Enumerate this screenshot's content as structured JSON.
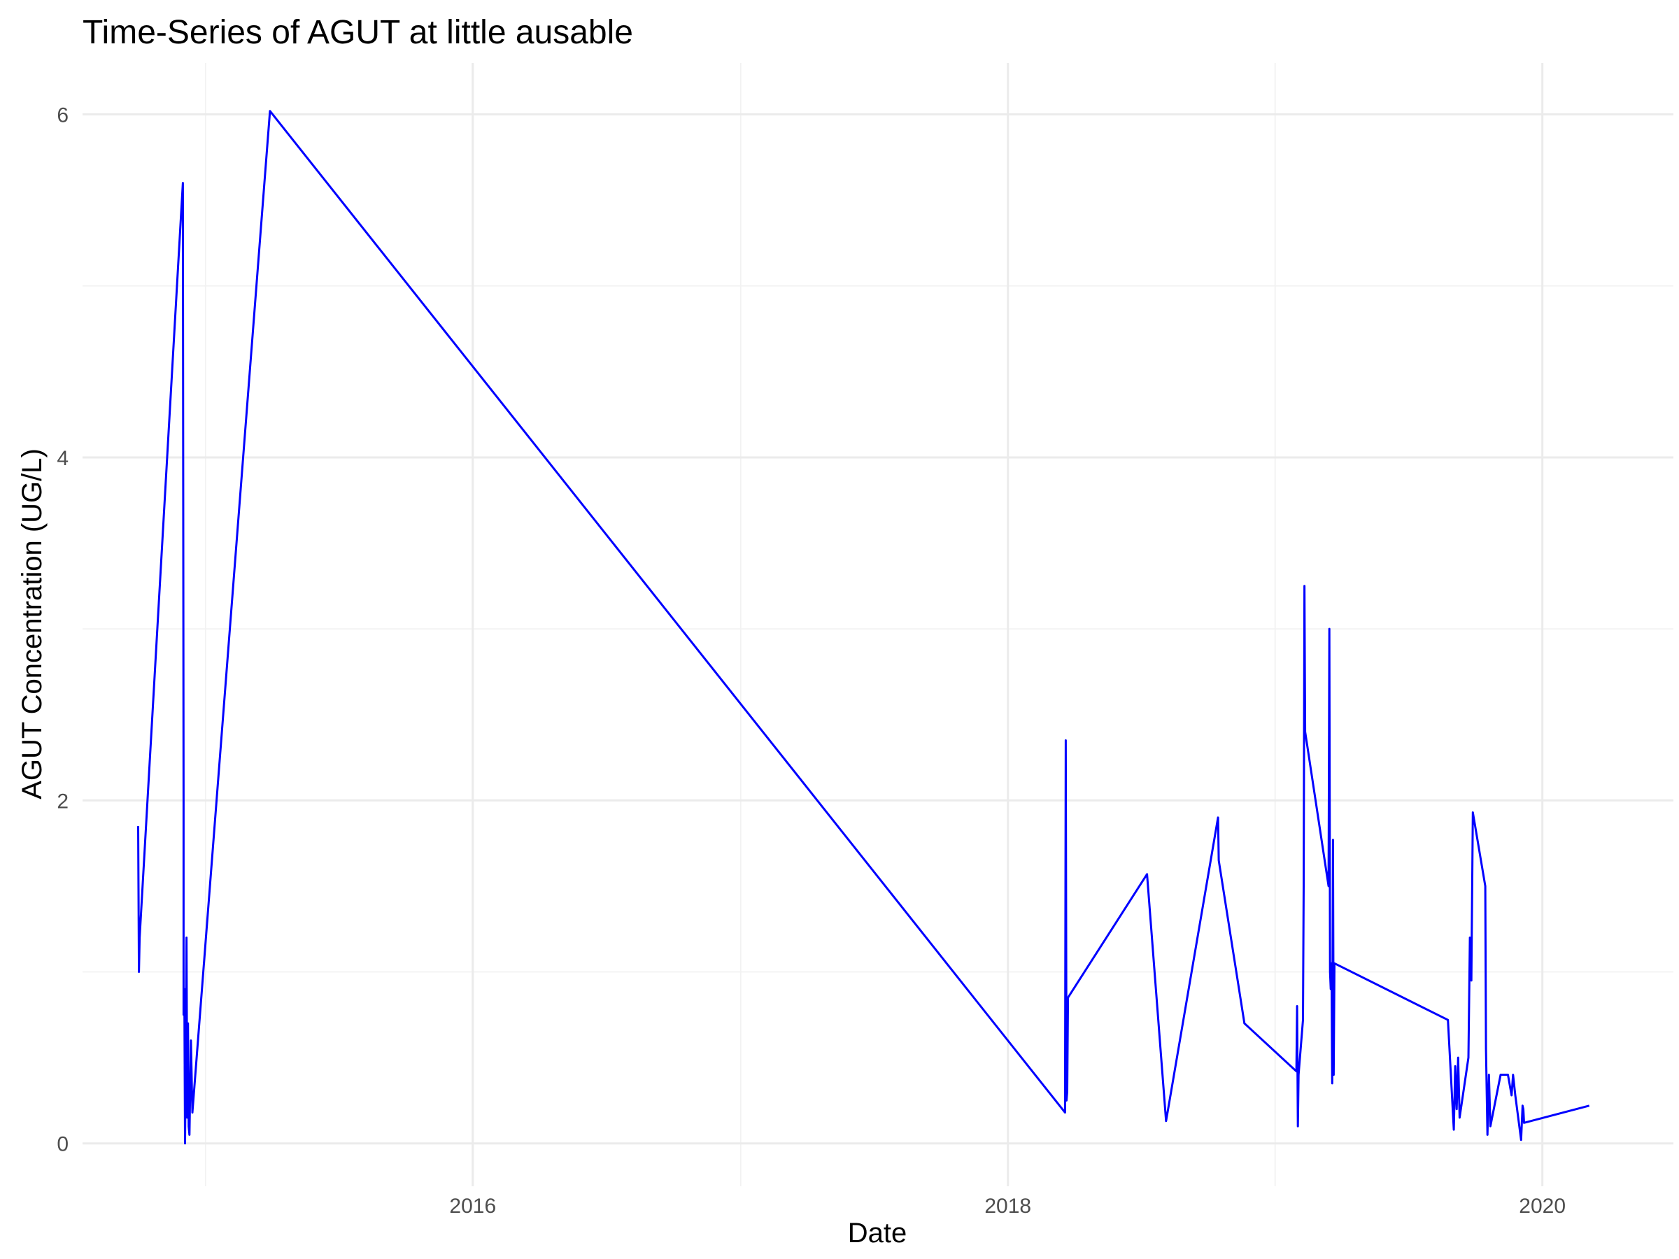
{
  "chart_data": {
    "type": "line",
    "title": "Time-Series of AGUT at little ausable",
    "xlabel": "Date",
    "ylabel": "AGUT Concentration (UG/L)",
    "x_tick_labels": [
      "2016",
      "2018",
      "2020"
    ],
    "y_tick_labels": [
      "0",
      "2",
      "4",
      "6"
    ],
    "ylim": [
      -0.25,
      6.3
    ],
    "xlim": [
      "2014-07-17",
      "2020-06-28"
    ],
    "grid": true,
    "legend": "none",
    "line_color": "#0000ff",
    "series": [
      {
        "x": [
          "2014-10-01",
          "2014-10-02",
          "2014-10-03",
          "2014-12-01",
          "2014-12-02",
          "2014-12-02",
          "2014-12-03",
          "2014-12-04",
          "2014-12-05",
          "2014-12-06",
          "2014-12-07",
          "2014-12-08",
          "2014-12-09",
          "2014-12-10",
          "2014-12-11",
          "2014-12-12",
          "2014-12-14",
          "2015-03-30",
          "2018-03-20",
          "2018-03-21",
          "2018-03-22",
          "2018-03-23",
          "2018-03-24",
          "2018-07-10",
          "2018-08-05",
          "2018-10-15",
          "2018-10-16",
          "2018-11-20",
          "2019-01-30",
          "2019-01-31",
          "2019-02-01",
          "2019-02-02",
          "2019-02-08",
          "2019-02-09",
          "2019-02-10",
          "2019-02-11",
          "2019-03-15",
          "2019-03-16",
          "2019-03-17",
          "2019-03-18",
          "2019-03-19",
          "2019-03-20",
          "2019-03-21",
          "2019-03-22",
          "2019-03-23",
          "2019-08-25",
          "2019-09-02",
          "2019-09-04",
          "2019-09-06",
          "2019-09-08",
          "2019-09-10",
          "2019-09-22",
          "2019-09-24",
          "2019-09-26",
          "2019-09-28",
          "2019-10-15",
          "2019-10-16",
          "2019-10-18",
          "2019-10-20",
          "2019-10-22",
          "2019-11-05",
          "2019-11-10",
          "2019-11-12",
          "2019-11-15",
          "2019-11-20",
          "2019-11-22",
          "2019-11-25",
          "2019-12-03",
          "2019-12-05",
          "2019-12-06",
          "2019-12-07",
          "2020-03-05"
        ],
        "y": [
          1.85,
          1.0,
          1.2,
          5.6,
          2.0,
          0.75,
          0.9,
          0.0,
          0.6,
          1.2,
          0.15,
          0.7,
          0.1,
          0.05,
          0.3,
          0.6,
          0.18,
          6.02,
          0.18,
          2.35,
          0.25,
          0.3,
          0.85,
          1.57,
          0.13,
          1.9,
          1.65,
          0.7,
          0.42,
          0.8,
          0.1,
          0.4,
          0.72,
          1.5,
          3.25,
          2.4,
          1.5,
          3.0,
          1.0,
          0.9,
          1.05,
          0.35,
          1.77,
          0.4,
          1.05,
          0.72,
          0.08,
          0.45,
          0.2,
          0.5,
          0.15,
          0.5,
          1.2,
          0.95,
          1.93,
          1.5,
          0.55,
          0.05,
          0.4,
          0.1,
          0.4,
          0.4,
          0.4,
          0.4,
          0.28,
          0.4,
          0.28,
          0.02,
          0.22,
          0.2,
          0.12,
          0.22
        ]
      }
    ]
  }
}
